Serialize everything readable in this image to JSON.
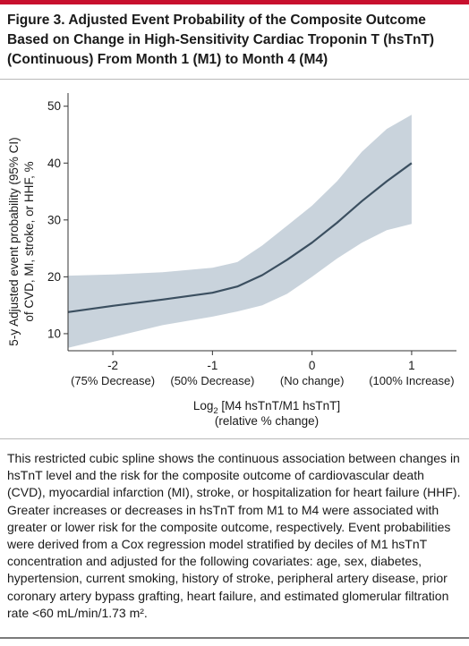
{
  "figure": {
    "title": "Figure 3. Adjusted Event Probability of the Composite Outcome Based on Change in High-Sensitivity Cardiac Troponin T (hsTnT) (Continuous) From Month 1 (M1) to Month 4 (M4)",
    "caption": "This restricted cubic spline shows the continuous association between changes in hsTnT level and the risk for the composite outcome of cardiovascular death (CVD), myocardial infarction (MI), stroke, or hospitalization for heart failure (HHF). Greater increases or decreases in hsTnT from M1 to M4 were associated with greater or lower risk for the composite outcome, respectively. Event probabilities were derived from a Cox regression model stratified by deciles of M1 hsTnT concentration and adjusted for the following covariates: age, sex, diabetes, hypertension, current smoking, history of stroke, peripheral artery disease, prior coronary artery bypass grafting, heart failure, and estimated glomerular filtration rate <60 mL/min/1.73 m²."
  },
  "colors": {
    "accent_rule": "#c8102e",
    "band": "#c9d3dc",
    "line": "#3b4f60"
  },
  "chart_data": {
    "type": "line",
    "ylabel_line1": "5-y Adjusted event probability (95% CI)",
    "ylabel_line2": "of CVD, MI, stroke, or HHF, %",
    "xlabel_main": "Log",
    "xlabel_sub": "2",
    "xlabel_rest": " [M4 hsTnT/M1 hsTnT]",
    "xlabel_line2": "(relative % change)",
    "xlim": [
      -2.45,
      1.45
    ],
    "ylim": [
      7,
      52
    ],
    "yticks": [
      10,
      20,
      30,
      40,
      50
    ],
    "xticks": [
      {
        "value": -2,
        "label": "-2",
        "sublabel": "(75% Decrease)"
      },
      {
        "value": -1,
        "label": "-1",
        "sublabel": "(50% Decrease)"
      },
      {
        "value": 0,
        "label": "0",
        "sublabel": "(No change)"
      },
      {
        "value": 1,
        "label": "1",
        "sublabel": "(100% Increase)"
      }
    ],
    "x": [
      -2.45,
      -2.0,
      -1.5,
      -1.0,
      -0.75,
      -0.5,
      -0.25,
      0.0,
      0.25,
      0.5,
      0.75,
      1.0
    ],
    "estimate": [
      13.8,
      14.9,
      16.0,
      17.2,
      18.3,
      20.3,
      23.0,
      26.0,
      29.5,
      33.3,
      36.8,
      40.0
    ],
    "lower": [
      7.5,
      9.4,
      11.5,
      13.0,
      13.9,
      15.0,
      17.0,
      20.0,
      23.2,
      26.0,
      28.2,
      29.3
    ],
    "upper": [
      20.2,
      20.4,
      20.8,
      21.6,
      22.6,
      25.5,
      29.0,
      32.5,
      36.8,
      42.0,
      46.0,
      48.5
    ]
  }
}
